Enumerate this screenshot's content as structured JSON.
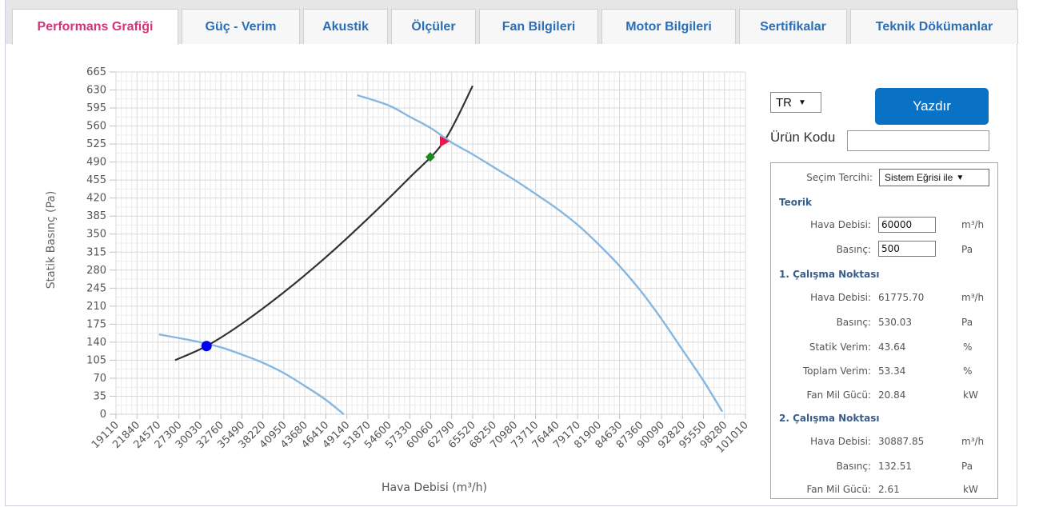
{
  "tabs": [
    {
      "label": "Performans Grafiği",
      "active": true
    },
    {
      "label": "Güç - Verim"
    },
    {
      "label": "Akustik"
    },
    {
      "label": "Ölçüler"
    },
    {
      "label": "Fan Bilgileri"
    },
    {
      "label": "Motor Bilgileri"
    },
    {
      "label": "Sertifikalar"
    },
    {
      "label": "Teknik Dökümanlar"
    }
  ],
  "colors": {
    "active_tab": "#d6347a",
    "tab_text": "#2a6fb8",
    "fan_curve": "#86b7e0",
    "system_curve": "#333333",
    "button": "#0a72c4"
  },
  "chart_data": {
    "type": "line",
    "xlabel": "Hava Debisi (m³/h)",
    "ylabel": "Statik Basınç (Pa)",
    "xlim": [
      19110,
      101010
    ],
    "ylim": [
      0,
      665
    ],
    "x_ticks": [
      "19110",
      "21840",
      "24570",
      "27300",
      "30030",
      "32760",
      "35490",
      "38220",
      "40950",
      "43680",
      "46410",
      "49140",
      "51870",
      "54600",
      "57330",
      "60060",
      "62790",
      "65520",
      "68250",
      "70980",
      "73710",
      "76440",
      "79170",
      "81900",
      "84630",
      "87360",
      "90090",
      "92820",
      "95550",
      "98280",
      "101010"
    ],
    "y_ticks": [
      "0",
      "35",
      "70",
      "105",
      "140",
      "175",
      "210",
      "245",
      "280",
      "315",
      "350",
      "385",
      "420",
      "455",
      "490",
      "525",
      "560",
      "595",
      "630",
      "665"
    ],
    "grid": true,
    "series": [
      {
        "role": "fan-curve-1",
        "color": "#86b7e0",
        "x": [
          24700,
          27300,
          30030,
          32760,
          35490,
          38220,
          40950,
          43680,
          46410,
          48750
        ],
        "y": [
          155,
          148,
          140,
          130,
          116,
          100,
          80,
          55,
          28,
          0
        ]
      },
      {
        "role": "system-curve",
        "color": "#333333",
        "x": [
          26800,
          30887.85,
          35490,
          40950,
          46410,
          51870,
          57330,
          61775.7,
          65520
        ],
        "y": [
          105,
          132.51,
          176,
          237,
          305,
          380,
          460,
          530.03,
          638
        ]
      },
      {
        "role": "fan-curve-2",
        "color": "#86b7e0",
        "x": [
          50500,
          54600,
          57330,
          60060,
          62790,
          65520,
          68250,
          70980,
          73710,
          76440,
          79170,
          81900,
          84630,
          87360,
          90090,
          92820,
          95550,
          98000
        ],
        "y": [
          620,
          600,
          578,
          556,
          528,
          505,
          480,
          455,
          428,
          400,
          368,
          330,
          288,
          240,
          185,
          125,
          65,
          5
        ]
      }
    ],
    "markers": [
      {
        "shape": "circle",
        "color": "#0000ee",
        "x": 30887.85,
        "y": 132.51
      },
      {
        "shape": "diamond",
        "color": "#1a8a1a",
        "x": 60000,
        "y": 500
      },
      {
        "shape": "triangle",
        "color": "#e8194a",
        "x": 61775.7,
        "y": 530.03
      }
    ]
  },
  "controls": {
    "language": "TR",
    "print_label": "Yazdır",
    "product_code_label": "Ürün Kodu",
    "product_code_value": ""
  },
  "panel": {
    "preference_label": "Seçim Tercihi:",
    "preference_value": "Sistem Eğrisi ile",
    "theoretical_title": "Teorik",
    "theoretical": {
      "flow_label": "Hava Debisi:",
      "flow_value": "60000",
      "flow_unit": "m³/h",
      "pressure_label": "Basınç:",
      "pressure_value": "500",
      "pressure_unit": "Pa"
    },
    "point1_title": "1. Çalışma Noktası",
    "point1": {
      "flow_label": "Hava Debisi:",
      "flow_value": "61775.70",
      "flow_unit": "m³/h",
      "pressure_label": "Basınç:",
      "pressure_value": "530.03",
      "pressure_unit": "Pa",
      "static_eff_label": "Statik Verim:",
      "static_eff_value": "43.64",
      "static_eff_unit": "%",
      "total_eff_label": "Toplam Verim:",
      "total_eff_value": "53.34",
      "total_eff_unit": "%",
      "shaft_label": "Fan Mil Gücü:",
      "shaft_value": "20.84",
      "shaft_unit": "kW"
    },
    "point2_title": "2. Çalışma Noktası",
    "point2": {
      "flow_label": "Hava Debisi:",
      "flow_value": "30887.85",
      "flow_unit": "m³/h",
      "pressure_label": "Basınç:",
      "pressure_value": "132.51",
      "pressure_unit": "Pa",
      "shaft_label": "Fan Mil Gücü:",
      "shaft_value": "2.61",
      "shaft_unit": "kW"
    }
  }
}
